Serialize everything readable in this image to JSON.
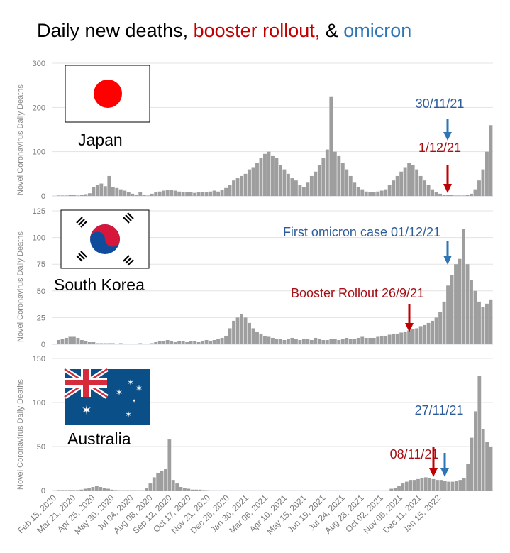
{
  "title": {
    "part1": "Daily new deaths, ",
    "part2": "booster rollout,",
    "part3": " & ",
    "part4": "omicron"
  },
  "colors": {
    "bars": "#9e9e9e",
    "booster": "#c00000",
    "omicron": "#2e75b6",
    "grid": "#e3e3e3"
  },
  "x_ticks": [
    "Feb 15, 2020",
    "Mar 21, 2020",
    "Apr 25, 2020",
    "May 30, 2020",
    "Jul 04, 2020",
    "Aug 08, 2020",
    "Sep 12, 2020",
    "Oct 17, 2020",
    "Nov 21, 2020",
    "Dec 26, 2020",
    "Jan 30, 2021",
    "Mar 06, 2021",
    "Apr 10, 2021",
    "May 15, 2021",
    "Jun 19, 2021",
    "Jul 24, 2021",
    "Aug 28, 2021",
    "Oct 02, 2021",
    "Nov 06, 2021",
    "Dec 11, 2021",
    "Jan 15, 2022"
  ],
  "chart_data": [
    {
      "type": "bar",
      "country": "Japan",
      "ylabel": "Novel Coronavirus Daily Deaths",
      "ylim": [
        0,
        300
      ],
      "yticks": [
        "0",
        "100",
        "200",
        "300"
      ],
      "grid": true,
      "values": [
        1,
        1,
        1,
        2,
        2,
        1,
        3,
        4,
        6,
        20,
        25,
        28,
        22,
        45,
        20,
        18,
        15,
        12,
        8,
        5,
        3,
        8,
        2,
        1,
        5,
        8,
        10,
        12,
        14,
        13,
        12,
        10,
        9,
        8,
        8,
        7,
        8,
        9,
        8,
        10,
        12,
        10,
        14,
        18,
        25,
        35,
        40,
        45,
        50,
        60,
        65,
        75,
        85,
        95,
        100,
        90,
        85,
        70,
        60,
        50,
        40,
        35,
        25,
        20,
        30,
        45,
        55,
        70,
        85,
        105,
        225,
        100,
        90,
        75,
        60,
        45,
        30,
        20,
        15,
        10,
        8,
        8,
        10,
        12,
        15,
        25,
        35,
        45,
        55,
        65,
        75,
        70,
        60,
        45,
        35,
        25,
        15,
        8,
        5,
        3,
        2,
        2,
        1,
        1,
        1,
        2,
        5,
        15,
        35,
        60,
        100,
        160
      ],
      "annotations": [
        {
          "text": "30/11/21",
          "color": "omicron"
        },
        {
          "text": "1/12/21",
          "color": "booster"
        }
      ]
    },
    {
      "type": "bar",
      "country": "South Korea",
      "ylabel": "Novel Coronavirus Daily Deaths",
      "ylim": [
        0,
        125
      ],
      "yticks": [
        "0",
        "25",
        "50",
        "75",
        "100",
        "125"
      ],
      "grid": true,
      "values": [
        4,
        5,
        6,
        7,
        7,
        6,
        4,
        3,
        2,
        2,
        1,
        1,
        1,
        1,
        1,
        0.5,
        1,
        0.5,
        0.5,
        0.5,
        0.5,
        1,
        0.5,
        0.5,
        1,
        2,
        3,
        3,
        4,
        3,
        2,
        3,
        3,
        2,
        3,
        3,
        2,
        3,
        4,
        3,
        4,
        5,
        6,
        8,
        15,
        22,
        25,
        28,
        25,
        20,
        15,
        12,
        10,
        8,
        7,
        6,
        5,
        5,
        4,
        5,
        6,
        5,
        4,
        5,
        5,
        4,
        6,
        5,
        4,
        4,
        5,
        5,
        4,
        5,
        6,
        5,
        5,
        6,
        7,
        6,
        6,
        6,
        7,
        8,
        8,
        9,
        10,
        10,
        11,
        12,
        13,
        14,
        15,
        17,
        18,
        20,
        22,
        25,
        30,
        40,
        55,
        65,
        75,
        80,
        108,
        75,
        60,
        50,
        40,
        35,
        38,
        42
      ],
      "annotations": [
        {
          "text": "First omicron case 01/12/21",
          "color": "omicron"
        },
        {
          "text": "Booster Rollout 26/9/21",
          "color": "booster"
        }
      ]
    },
    {
      "type": "bar",
      "country": "Australia",
      "ylabel": "Novel Coronavirus Daily Deaths",
      "ylim": [
        0,
        150
      ],
      "yticks": [
        "0",
        "50",
        "100",
        "150"
      ],
      "grid": true,
      "values": [
        0.5,
        0.5,
        0.5,
        0.5,
        0.5,
        0.5,
        1,
        2,
        3,
        4,
        5,
        4,
        3,
        2,
        1,
        0.5,
        0.3,
        0.3,
        0.3,
        0.3,
        0.3,
        0.3,
        0.3,
        3,
        8,
        15,
        20,
        22,
        25,
        58,
        12,
        8,
        4,
        3,
        2,
        1,
        1,
        1,
        0.5,
        0.3,
        0,
        0,
        0,
        0,
        0,
        0,
        0,
        0,
        0,
        0,
        0,
        0,
        0,
        0,
        0,
        0,
        0,
        0,
        0,
        0,
        0,
        0,
        0,
        0,
        0,
        0,
        0,
        0,
        0,
        0,
        0,
        0,
        0,
        0,
        0,
        0,
        0,
        0,
        0,
        0,
        0,
        0,
        0,
        0,
        0,
        0,
        0,
        2,
        3,
        5,
        8,
        10,
        12,
        12,
        13,
        14,
        15,
        14,
        13,
        12,
        12,
        11,
        10,
        10,
        11,
        12,
        14,
        30,
        60,
        90,
        130,
        70,
        55,
        50
      ],
      "annotations": [
        {
          "text": "27/11/21",
          "color": "omicron"
        },
        {
          "text": "08/11/21",
          "color": "booster"
        }
      ]
    }
  ]
}
